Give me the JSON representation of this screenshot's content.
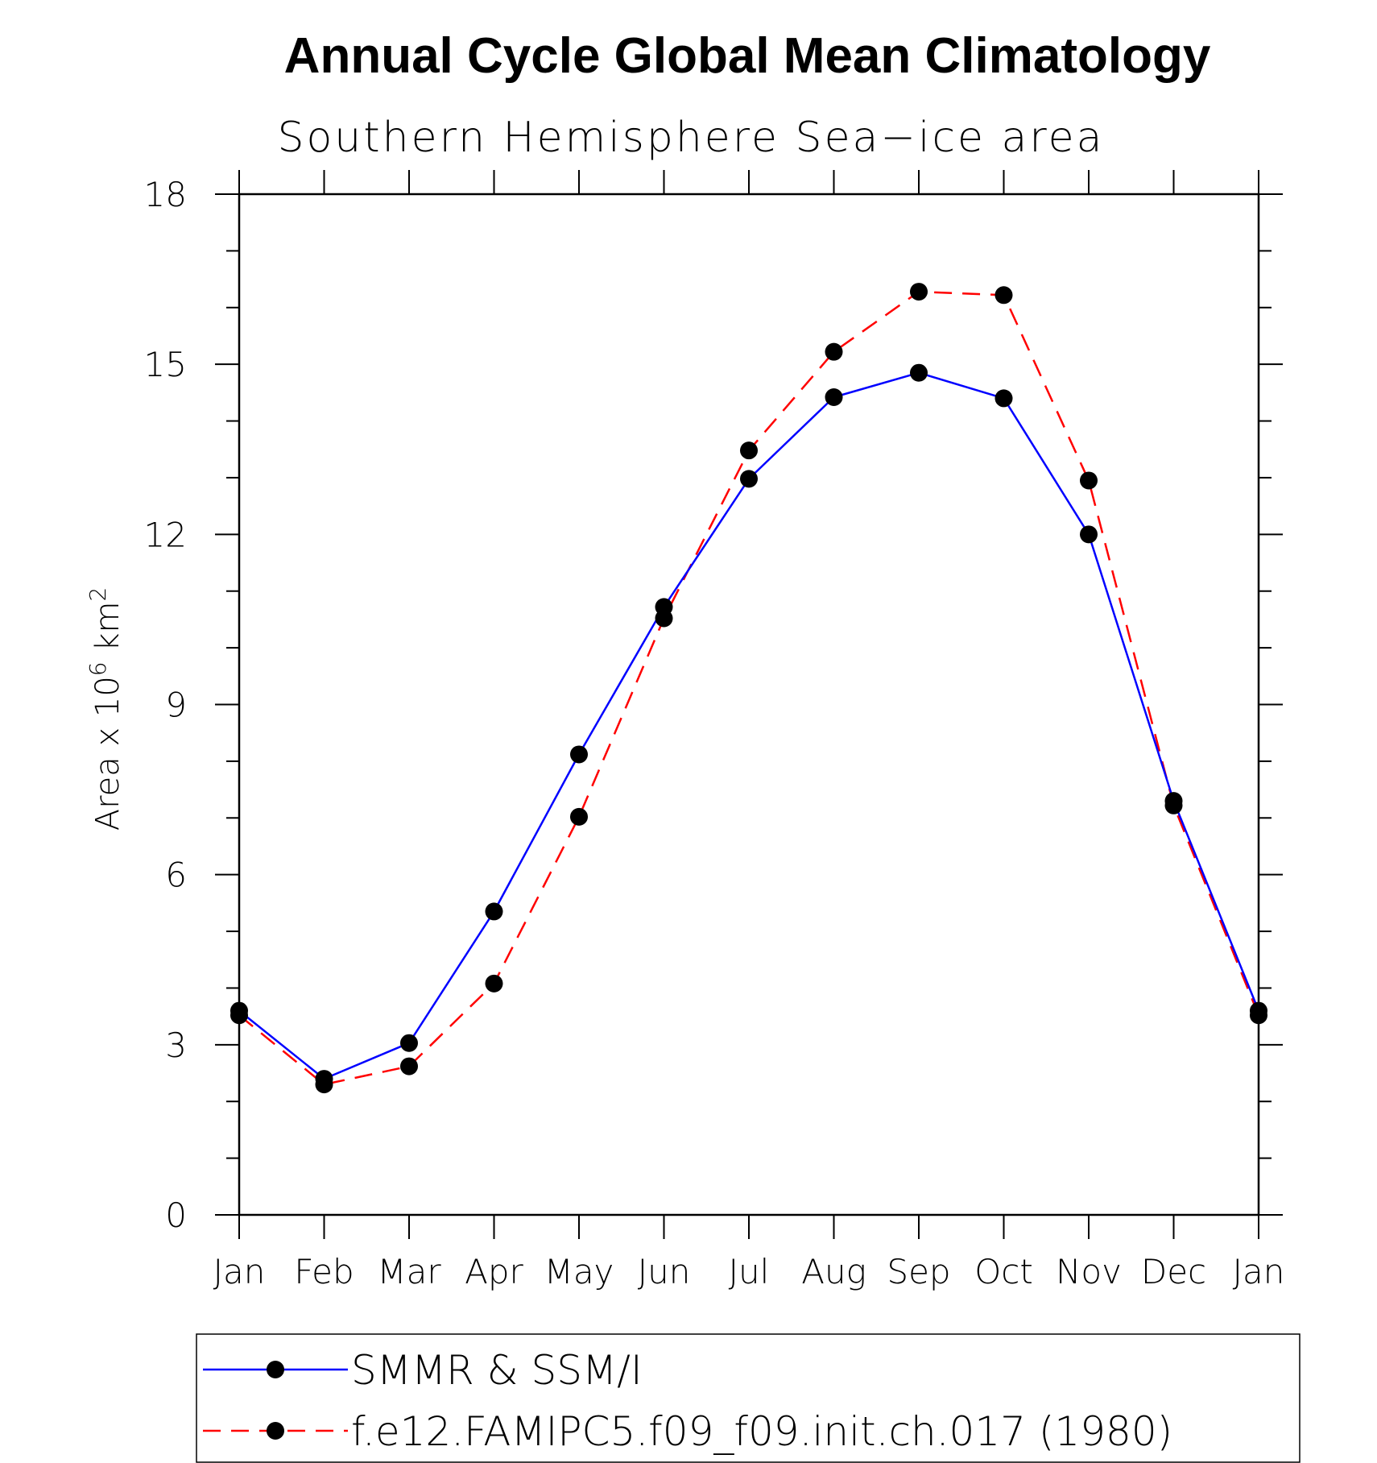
{
  "chart_data": {
    "type": "line",
    "title": "Annual Cycle Global Mean Climatology",
    "subtitle": "Southern Hemisphere Sea−ice area",
    "ylabel_prefix": "Area x 10",
    "ylabel_exp": "6",
    "ylabel_unit": " km",
    "ylabel_unit_exp": "2",
    "xlabel": "",
    "categories": [
      "Jan",
      "Feb",
      "Mar",
      "Apr",
      "May",
      "Jun",
      "Jul",
      "Aug",
      "Sep",
      "Oct",
      "Nov",
      "Dec",
      "Jan"
    ],
    "ylim": [
      0,
      18
    ],
    "yticks": [
      0,
      3,
      6,
      9,
      12,
      15,
      18
    ],
    "series": [
      {
        "name": "SMMR & SSM/I",
        "color": "#0000ff",
        "style": "solid",
        "values": [
          3.6,
          2.4,
          3.03,
          5.35,
          8.12,
          10.72,
          12.98,
          14.42,
          14.85,
          14.4,
          12.0,
          7.3,
          3.6
        ]
      },
      {
        "name": "f.e12.FAMIPC5.f09_f09.init.ch.017 (1980)",
        "color": "#ff0000",
        "style": "dashed",
        "values": [
          3.52,
          2.3,
          2.62,
          4.08,
          7.02,
          10.52,
          13.48,
          15.22,
          16.28,
          16.22,
          12.95,
          7.22,
          3.52
        ]
      }
    ],
    "grid": false,
    "legend_position": "bottom"
  }
}
